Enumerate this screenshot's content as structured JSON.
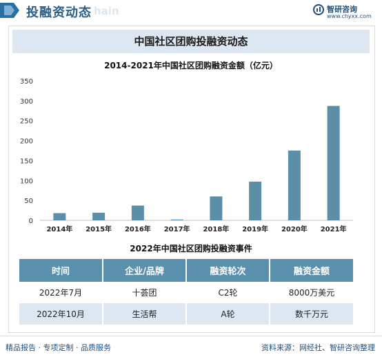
{
  "header": {
    "title": "投融资动态",
    "watermark": "hain",
    "brand_name": "智研咨询",
    "brand_url": "www.chyxx.com"
  },
  "banner": {
    "text": "中国社区团购投融资动态"
  },
  "chart_data": {
    "type": "bar",
    "title": "2014-2021年中国社区团购融资金额（亿元）",
    "categories": [
      "2014年",
      "2015年",
      "2016年",
      "2017年",
      "2018年",
      "2019年",
      "2020年",
      "2021年"
    ],
    "values": [
      18,
      19,
      37,
      2,
      60,
      97,
      175,
      287
    ],
    "ylim": [
      0,
      350
    ],
    "yticks": [
      0,
      50,
      100,
      150,
      200,
      250,
      300,
      350
    ],
    "bar_color": "#5b8fa8",
    "grid": false,
    "xlabel": "",
    "ylabel": ""
  },
  "table": {
    "title": "2022年中国社区团购投融资事件",
    "headers": [
      "时间",
      "企业/品牌",
      "融资轮次",
      "融资金额"
    ],
    "rows": [
      [
        "2022年7月",
        "十荟团",
        "C2轮",
        "8000万美元"
      ],
      [
        "2022年10月",
        "生活帮",
        "A轮",
        "数千万元"
      ]
    ]
  },
  "footer": {
    "left": "精品报告 · 专项定制 · 品质服务",
    "right": "资料来源：网经社、智研咨询整理"
  },
  "colors": {
    "accent": "#2a5e86",
    "table_header": "#5b8fae",
    "banner": "#dce7f2"
  }
}
